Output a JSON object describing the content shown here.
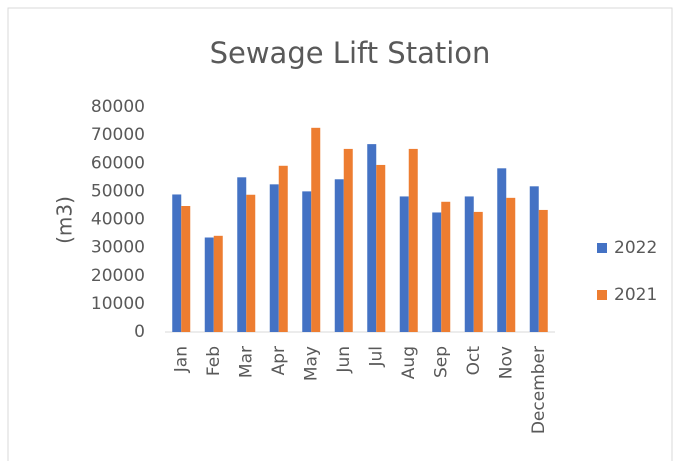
{
  "chart_data": {
    "type": "bar",
    "title": "Sewage Lift Station",
    "y_label": "(m3)",
    "categories": [
      "Jan",
      "Feb",
      "Mar",
      "Apr",
      "May",
      "Jun",
      "Jul",
      "Aug",
      "Sep",
      "Oct",
      "Nov",
      "December"
    ],
    "series": [
      {
        "name": "2022",
        "color": "#4472c4",
        "values": [
          48900,
          33600,
          55000,
          52500,
          50000,
          54300,
          66800,
          48200,
          42500,
          48200,
          58200,
          51800
        ]
      },
      {
        "name": "2021",
        "color": "#ed7d31",
        "values": [
          44800,
          34200,
          48800,
          59100,
          72600,
          65100,
          59400,
          65100,
          46300,
          42700,
          47700,
          43400
        ]
      }
    ],
    "ylim": [
      0,
      80000
    ],
    "yticks": [
      0,
      10000,
      20000,
      30000,
      40000,
      50000,
      60000,
      70000,
      80000
    ],
    "grid": false,
    "legend": "right"
  }
}
